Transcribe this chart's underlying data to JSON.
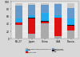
{
  "categories": [
    "EU-27",
    "Japan",
    "China",
    "USA",
    "Russia"
  ],
  "stack_order": [
    "Non-motorized",
    "Car",
    "Motorcycle",
    "Bus",
    "Metro",
    "Rail"
  ],
  "stack_data": {
    "Non-motorized": [
      38,
      14,
      42,
      8,
      22
    ],
    "Car": [
      5,
      40,
      5,
      48,
      14
    ],
    "Motorcycle": [
      2,
      2,
      2,
      2,
      1
    ],
    "Bus": [
      10,
      8,
      20,
      5,
      18
    ],
    "Metro": [
      35,
      28,
      22,
      30,
      28
    ],
    "Rail": [
      5,
      3,
      4,
      2,
      12
    ]
  },
  "colors": {
    "Non-motorized": "#aaaaaa",
    "Car": "#dd1111",
    "Motorcycle": "#111111",
    "Bus": "#22aaee",
    "Metro": "#6699cc",
    "Rail": "#c8c8c8"
  },
  "ylim": [
    0,
    100
  ],
  "yticks": [
    0,
    20,
    40,
    60,
    80,
    100
  ],
  "bar_width": 0.55,
  "fig_bg": "#d8d8d8",
  "ax_bg": "#e8e8e8",
  "grid_color": "#ffffff",
  "legend": [
    {
      "label": "Non-motorized/India-EU 17?",
      "color": "#aaaaaa"
    },
    {
      "label": "Bus",
      "color": "#22aaee"
    },
    {
      "label": "Car/private",
      "color": "#dd1111"
    },
    {
      "label": "Metro/Tram",
      "color": "#6699cc"
    },
    {
      "label": "Motorcycles",
      "color": "#111111"
    },
    {
      "label": "Rail",
      "color": "#c8c8c8"
    }
  ]
}
